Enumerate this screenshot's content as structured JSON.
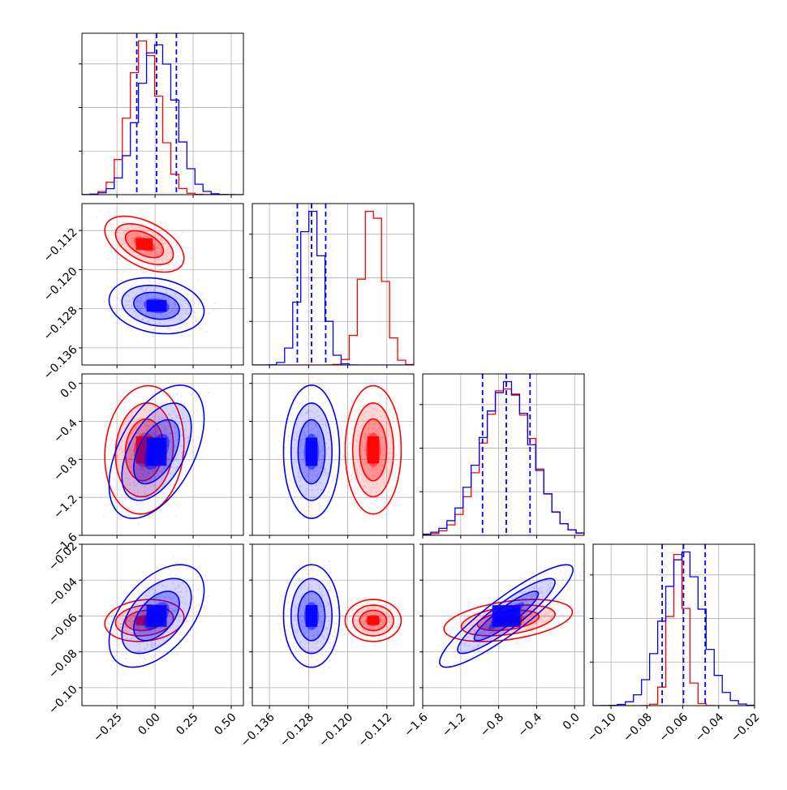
{
  "colors": {
    "red": "#ff0000",
    "blue": "#0000ff",
    "grid": "#b0b0b0"
  },
  "chart_data": {
    "type": "corner",
    "parameters": 4,
    "legend": "none",
    "grid": true,
    "ranges": [
      [
        -0.48,
        0.58
      ],
      [
        -0.1395,
        -0.1065
      ],
      [
        -1.6,
        0.1
      ],
      [
        -0.11,
        -0.02
      ]
    ],
    "x_ticks": [
      {
        "values": [
          -0.25,
          0.0,
          0.25,
          0.5
        ],
        "labels": [
          "−0.25",
          "0.00",
          "0.25",
          "0.50"
        ]
      },
      {
        "values": [
          -0.136,
          -0.128,
          -0.12,
          -0.112
        ],
        "labels": [
          "−0.136",
          "−0.128",
          "−0.120",
          "−0.112"
        ]
      },
      {
        "values": [
          -1.6,
          -1.2,
          -0.8,
          -0.4,
          0.0
        ],
        "labels": [
          "−1.6",
          "−1.2",
          "−0.8",
          "−0.4",
          "0.0"
        ]
      },
      {
        "values": [
          -0.1,
          -0.08,
          -0.06,
          -0.04,
          -0.02
        ],
        "labels": [
          "−0.10",
          "−0.08",
          "−0.06",
          "−0.04",
          "−0.02"
        ]
      }
    ],
    "y_ticks": [
      null,
      {
        "values": [
          -0.112,
          -0.12,
          -0.128,
          -0.136
        ],
        "labels": [
          "−0.112",
          "−0.120",
          "−0.128",
          "−0.136"
        ]
      },
      {
        "values": [
          0.0,
          -0.4,
          -0.8,
          -1.2,
          -1.6
        ],
        "labels": [
          "0.0",
          "−0.4",
          "−0.8",
          "−1.2",
          "−1.6"
        ]
      },
      {
        "values": [
          -0.02,
          -0.04,
          -0.06,
          -0.08,
          -0.1
        ],
        "labels": [
          "−0.02",
          "−0.04",
          "−0.06",
          "−0.08",
          "−0.10"
        ]
      }
    ],
    "series": [
      {
        "color": "#ff0000",
        "mean": [
          -0.07,
          -0.1148,
          -0.7,
          -0.0625
        ],
        "std": [
          0.1,
          0.0022,
          0.26,
          0.0045
        ],
        "correlations": {
          "1-0": -0.5,
          "2-0": 0.1,
          "2-1": 0.0,
          "3-0": 0.15,
          "3-1": 0.0,
          "3-2": 0.4
        }
      },
      {
        "color": "#0000ff",
        "mean": [
          0.01,
          -0.1274,
          -0.72,
          -0.06
        ],
        "std": [
          0.12,
          0.0022,
          0.27,
          0.011
        ],
        "correlations": {
          "1-0": -0.2,
          "2-0": 0.5,
          "2-1": 0.0,
          "3-0": 0.5,
          "3-1": 0.0,
          "3-2": 0.9
        }
      }
    ],
    "quantile_lines": [
      [
        -0.12,
        0.01,
        0.14
      ],
      [
        -0.1303,
        -0.1274,
        -0.1245
      ],
      [
        -0.97,
        -0.72,
        -0.47
      ],
      [
        -0.0715,
        -0.0596,
        -0.0475
      ]
    ]
  }
}
